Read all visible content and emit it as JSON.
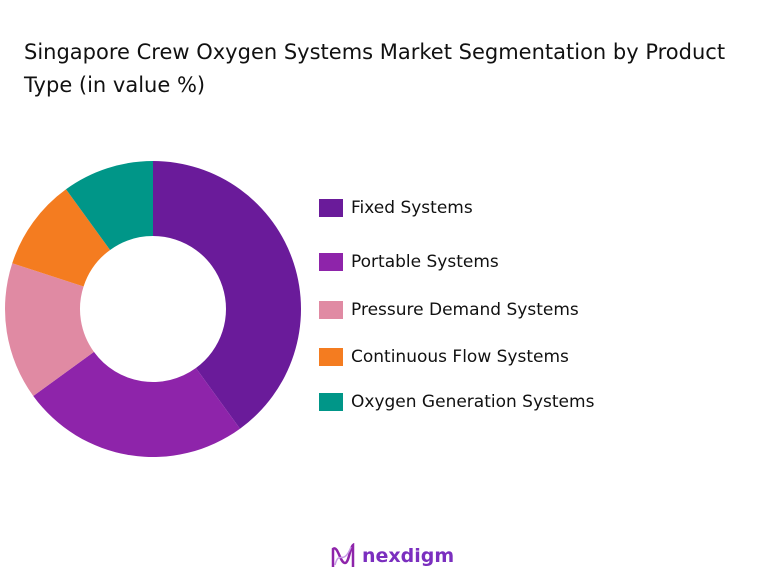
{
  "chart_data": {
    "type": "pie",
    "donut": true,
    "title": "Singapore Crew Oxygen Systems Market Segmentation by Product Type (in value %)",
    "categories": [
      "Fixed Systems",
      "Portable Systems",
      "Pressure Demand Systems",
      "Continuous Flow Systems",
      "Oxygen Generation Systems"
    ],
    "values": [
      40,
      25,
      15,
      10,
      10
    ],
    "colors": [
      "#6a1b9a",
      "#8e24aa",
      "#e08aa3",
      "#f47c20",
      "#009688"
    ],
    "legend_position": "right"
  },
  "brand": {
    "name": "nexdigm"
  }
}
